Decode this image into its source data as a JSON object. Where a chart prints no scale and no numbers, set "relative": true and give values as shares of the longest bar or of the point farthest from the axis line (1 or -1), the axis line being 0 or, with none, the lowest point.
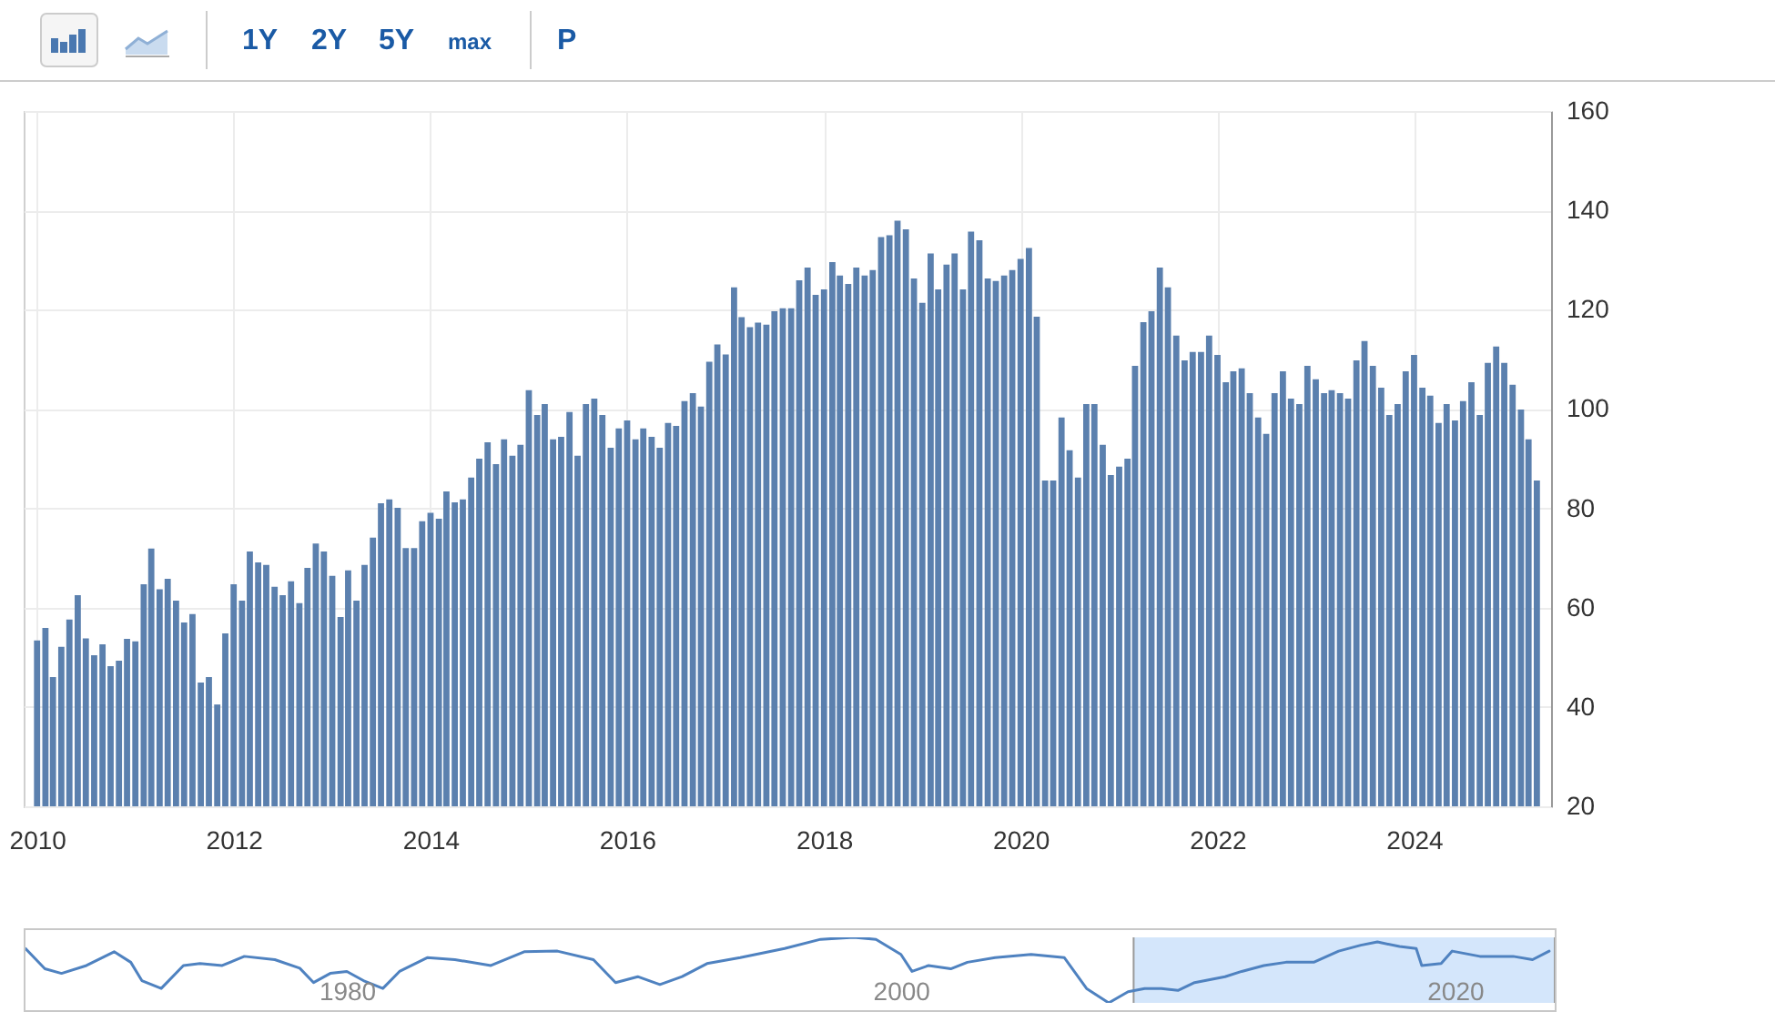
{
  "chart_data": [
    {
      "type": "bar",
      "annotations": [
        "1Y",
        "2Y",
        "5Y",
        "max",
        "P"
      ],
      "color": "#5b80ae",
      "grid": true,
      "ylim": [
        20,
        160
      ],
      "yticks": [
        20,
        40,
        60,
        80,
        100,
        120,
        140,
        160
      ],
      "xlim": [
        "2009-12-16",
        "2025-04-20"
      ],
      "xticks": [
        "2010",
        "2012",
        "2014",
        "2016",
        "2018",
        "2020",
        "2022",
        "2024"
      ],
      "x": [
        "2010-01",
        "2010-02",
        "2010-03",
        "2010-04",
        "2010-05",
        "2010-06",
        "2010-07",
        "2010-08",
        "2010-09",
        "2010-10",
        "2010-11",
        "2010-12",
        "2011-01",
        "2011-02",
        "2011-03",
        "2011-04",
        "2011-05",
        "2011-06",
        "2011-07",
        "2011-08",
        "2011-09",
        "2011-10",
        "2011-11",
        "2011-12",
        "2012-01",
        "2012-02",
        "2012-03",
        "2012-04",
        "2012-05",
        "2012-06",
        "2012-07",
        "2012-08",
        "2012-09",
        "2012-10",
        "2012-11",
        "2012-12",
        "2013-01",
        "2013-02",
        "2013-03",
        "2013-04",
        "2013-05",
        "2013-06",
        "2013-07",
        "2013-08",
        "2013-09",
        "2013-10",
        "2013-11",
        "2013-12",
        "2014-01",
        "2014-02",
        "2014-03",
        "2014-04",
        "2014-05",
        "2014-06",
        "2014-07",
        "2014-08",
        "2014-09",
        "2014-10",
        "2014-11",
        "2014-12",
        "2015-01",
        "2015-02",
        "2015-03",
        "2015-04",
        "2015-05",
        "2015-06",
        "2015-07",
        "2015-08",
        "2015-09",
        "2015-10",
        "2015-11",
        "2015-12",
        "2016-01",
        "2016-02",
        "2016-03",
        "2016-04",
        "2016-05",
        "2016-06",
        "2016-07",
        "2016-08",
        "2016-09",
        "2016-10",
        "2016-11",
        "2016-12",
        "2017-01",
        "2017-02",
        "2017-03",
        "2017-04",
        "2017-05",
        "2017-06",
        "2017-07",
        "2017-08",
        "2017-09",
        "2017-10",
        "2017-11",
        "2017-12",
        "2018-01",
        "2018-02",
        "2018-03",
        "2018-04",
        "2018-05",
        "2018-06",
        "2018-07",
        "2018-08",
        "2018-09",
        "2018-10",
        "2018-11",
        "2018-12",
        "2019-01",
        "2019-02",
        "2019-03",
        "2019-04",
        "2019-05",
        "2019-06",
        "2019-07",
        "2019-08",
        "2019-09",
        "2019-10",
        "2019-11",
        "2019-12",
        "2020-01",
        "2020-02",
        "2020-03",
        "2020-04",
        "2020-05",
        "2020-06",
        "2020-07",
        "2020-08",
        "2020-09",
        "2020-10",
        "2020-11",
        "2020-12",
        "2021-01",
        "2021-02",
        "2021-03",
        "2021-04",
        "2021-05",
        "2021-06",
        "2021-07",
        "2021-08",
        "2021-09",
        "2021-10",
        "2021-11",
        "2021-12",
        "2022-01",
        "2022-02",
        "2022-03",
        "2022-04",
        "2022-05",
        "2022-06",
        "2022-07",
        "2022-08",
        "2022-09",
        "2022-10",
        "2022-11",
        "2022-12",
        "2023-01",
        "2023-02",
        "2023-03",
        "2023-04",
        "2023-05",
        "2023-06",
        "2023-07",
        "2023-08",
        "2023-09",
        "2023-10",
        "2023-11",
        "2023-12",
        "2024-01",
        "2024-02",
        "2024-03",
        "2024-04",
        "2024-05",
        "2024-06",
        "2024-07",
        "2024-08",
        "2024-09",
        "2024-10",
        "2024-11",
        "2024-12",
        "2025-01",
        "2025-02",
        "2025-03",
        "2025-04"
      ],
      "values": [
        53.4,
        55.9,
        46.0,
        52.1,
        57.6,
        62.5,
        53.8,
        50.4,
        52.6,
        48.2,
        49.3,
        53.7,
        53.2,
        64.7,
        71.9,
        63.7,
        65.8,
        61.4,
        57.0,
        58.7,
        44.9,
        46.0,
        40.5,
        54.8,
        64.7,
        61.4,
        71.3,
        69.1,
        68.6,
        64.2,
        62.5,
        65.3,
        60.9,
        68.0,
        72.9,
        71.3,
        66.4,
        58.1,
        67.5,
        61.4,
        68.6,
        74.1,
        81.0,
        81.8,
        80.1,
        72.0,
        72.0,
        77.4,
        79.1,
        77.9,
        83.4,
        81.2,
        81.8,
        86.2,
        90.0,
        93.3,
        88.9,
        93.9,
        90.6,
        92.8,
        103.8,
        98.8,
        101.0,
        93.9,
        94.4,
        99.4,
        90.6,
        101.0,
        102.1,
        98.8,
        92.2,
        96.1,
        97.7,
        93.9,
        96.1,
        94.4,
        92.2,
        97.2,
        96.6,
        101.6,
        103.2,
        100.5,
        109.5,
        113,
        111,
        124.5,
        118.5,
        116.5,
        117.4,
        117.0,
        119.7,
        120.3,
        120.3,
        125.9,
        128.5,
        123.0,
        124.1,
        129.6,
        126.9,
        125.2,
        128.5,
        126.9,
        128.0,
        134.6,
        135.0,
        137.9,
        136.2,
        126.3,
        121.4,
        131.3,
        124.1,
        129.1,
        131.3,
        124.1,
        135.7,
        134.0,
        126.3,
        125.8,
        126.9,
        128.0,
        130.2,
        132.4,
        118.6,
        85.6,
        85.6,
        98.3,
        91.7,
        86.2,
        101.0,
        101.0,
        92.8,
        86.7,
        88.4,
        90.0,
        108.7,
        117.5,
        119.7,
        128.5,
        124.5,
        114.8,
        109.8,
        111.5,
        111.5,
        114.8,
        110.9,
        105.4,
        107.6,
        108.2,
        103.2,
        98.3,
        95.0,
        103.2,
        107.6,
        102.1,
        101.0,
        108.7,
        106.0,
        103.2,
        103.8,
        103.2,
        102.1,
        109.8,
        113.7,
        108.7,
        104.3,
        98.8,
        101.0,
        107.6,
        110.9,
        104.3,
        102.7,
        97.2,
        101.0,
        97.7,
        101.6,
        105.4,
        98.8,
        109.3,
        112.6,
        109.3,
        104.9,
        99.9,
        93.9,
        85.6
      ]
    },
    {
      "type": "line",
      "relative": true,
      "xlim": [
        1968.4,
        2023.6
      ],
      "xticks": [
        1980,
        2000,
        2020
      ],
      "bands": [
        {
          "axis": "x",
          "from": 2008.4,
          "to": 2023.6,
          "color": "#d4e6fb"
        }
      ],
      "series": [
        {
          "color": "#4f82c0",
          "x": [
            1968.4,
            1969.1,
            1969.7,
            1970.6,
            1971.6,
            1972.2,
            1972.6,
            1973.3,
            1974.1,
            1974.7,
            1975.5,
            1976.3,
            1977.4,
            1978.3,
            1978.8,
            1979.4,
            1980.0,
            1980.6,
            1981.3,
            1981.9,
            1982.9,
            1983.9,
            1985.2,
            1986.4,
            1987.6,
            1988.9,
            1989.7,
            1990.5,
            1991.3,
            1992.1,
            1993.0,
            1994.2,
            1995.8,
            1997.1,
            1998.3,
            1999.1,
            2000.0,
            2000.4,
            2001.0,
            2001.8,
            2002.4,
            2003.4,
            2004.7,
            2005.9,
            2006.7,
            2007.5,
            2008.2,
            2008.8,
            2009.4,
            2010.0,
            2010.6,
            2011.7,
            2012.3,
            2013.1,
            2013.9,
            2014.9,
            2015.8,
            2016.6,
            2017.2,
            2018.0,
            2018.6,
            2018.8,
            2019.5,
            2019.9,
            2020.9,
            2022.1,
            2022.8,
            2023.4
          ],
          "values": [
            0.83,
            0.52,
            0.45,
            0.57,
            0.78,
            0.62,
            0.34,
            0.22,
            0.57,
            0.6,
            0.57,
            0.71,
            0.66,
            0.53,
            0.31,
            0.45,
            0.48,
            0.34,
            0.22,
            0.48,
            0.69,
            0.66,
            0.57,
            0.78,
            0.79,
            0.66,
            0.31,
            0.4,
            0.28,
            0.4,
            0.6,
            0.69,
            0.83,
            0.97,
            1.0,
            0.97,
            0.74,
            0.48,
            0.57,
            0.52,
            0.62,
            0.69,
            0.74,
            0.69,
            0.22,
            0,
            0.17,
            0.22,
            0.22,
            0.19,
            0.31,
            0.4,
            0.48,
            0.57,
            0.62,
            0.62,
            0.79,
            0.88,
            0.93,
            0.86,
            0.83,
            0.57,
            0.6,
            0.79,
            0.71,
            0.71,
            0.66,
            0.79
          ]
        }
      ]
    }
  ]
}
